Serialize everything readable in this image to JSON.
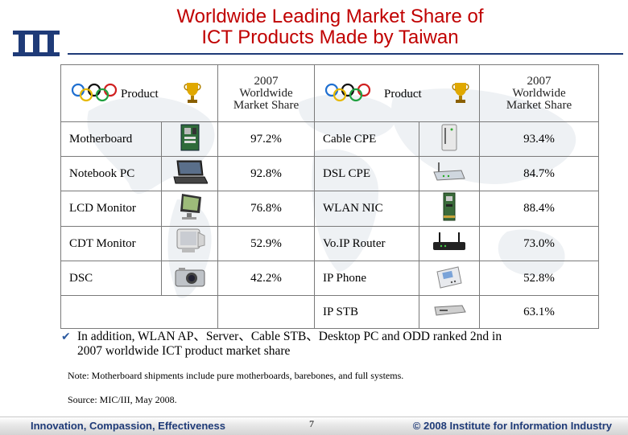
{
  "title": {
    "line1": "Worldwide Leading Market Share of",
    "line2": "ICT Products Made by Taiwan"
  },
  "table": {
    "header": {
      "product_label": "Product",
      "share_label_1": "2007",
      "share_label_2": "Worldwide",
      "share_label_3": "Market Share"
    },
    "rows": [
      {
        "left_product": "Motherboard",
        "left_icon": "motherboard-icon",
        "left_share": "97.2%",
        "right_product": "Cable CPE",
        "right_icon": "cable-modem-icon",
        "right_share": "93.4%"
      },
      {
        "left_product": "Notebook PC",
        "left_icon": "notebook-icon",
        "left_share": "92.8%",
        "right_product": "DSL CPE",
        "right_icon": "dsl-router-icon",
        "right_share": "84.7%"
      },
      {
        "left_product": "LCD Monitor",
        "left_icon": "lcd-monitor-icon",
        "left_share": "76.8%",
        "right_product": "WLAN NIC",
        "right_icon": "wlan-card-icon",
        "right_share": "88.4%"
      },
      {
        "left_product": "CDT Monitor",
        "left_icon": "crt-monitor-icon",
        "left_share": "52.9%",
        "right_product": "Vo.IP Router",
        "right_icon": "voip-router-icon",
        "right_share": "73.0%"
      },
      {
        "left_product": "DSC",
        "left_icon": "digital-camera-icon",
        "left_share": "42.2%",
        "right_product": "IP Phone",
        "right_icon": "ip-phone-icon",
        "right_share": "52.8%"
      },
      {
        "left_product": "",
        "left_icon": "",
        "left_share": "",
        "right_product": "IP STB",
        "right_icon": "set-top-box-icon",
        "right_share": "63.1%"
      }
    ]
  },
  "bullet": {
    "line1": "In addition, WLAN AP、Server、Cable STB、Desktop PC and ODD ranked 2nd in",
    "line2": "2007 worldwide ICT product market share"
  },
  "note": "Note: Motherboard shipments include pure motherboards, barebones, and full systems.",
  "source": "Source: MIC/III, May 2008.",
  "footer": {
    "left": "Innovation, Compassion, Effectiveness",
    "page": "7",
    "right": "© 2008 Institute for Information Industry"
  },
  "colors": {
    "title": "#c00000",
    "brand_blue": "#1f3b78",
    "bullet": "#2c5aa0"
  }
}
